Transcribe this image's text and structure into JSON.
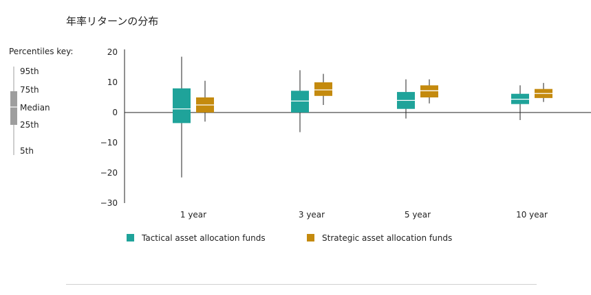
{
  "title": "年率リターンの分布",
  "key": {
    "heading": "Percentiles key:",
    "labels": [
      "95th",
      "75th",
      "Median",
      "25th",
      "5th"
    ],
    "color": "#9e9e9e"
  },
  "colors": {
    "tactical": "#1fa39a",
    "strategic": "#c48a0e",
    "median_line": "#ffffff",
    "axis": "#222222"
  },
  "chart_data": {
    "type": "box",
    "title": "年率リターンの分布",
    "categories": [
      "1 year",
      "3 year",
      "5 year",
      "10 year"
    ],
    "ylim": [
      -30,
      20
    ],
    "yticks": [
      "20",
      "10",
      "0",
      "−10",
      "−20",
      "−30"
    ],
    "ytick_values": [
      20,
      10,
      0,
      -10,
      -20,
      -30
    ],
    "xlabel": "",
    "ylabel": "",
    "legend_position": "bottom",
    "series": [
      {
        "name": "Tactical asset allocation funds",
        "color": "#1fa39a",
        "boxes": [
          {
            "p5": -21.5,
            "p25": -3.5,
            "median": 1.2,
            "p75": 8.0,
            "p95": 18.5
          },
          {
            "p5": -6.5,
            "p25": 0.0,
            "median": 3.8,
            "p75": 7.2,
            "p95": 14.0
          },
          {
            "p5": -2.0,
            "p25": 1.2,
            "median": 4.0,
            "p75": 6.8,
            "p95": 11.0
          },
          {
            "p5": -2.5,
            "p25": 2.8,
            "median": 4.4,
            "p75": 6.2,
            "p95": 9.0
          }
        ]
      },
      {
        "name": "Strategic asset allocation funds",
        "color": "#c48a0e",
        "boxes": [
          {
            "p5": -3.0,
            "p25": 0.0,
            "median": 2.5,
            "p75": 5.0,
            "p95": 10.5
          },
          {
            "p5": 2.5,
            "p25": 5.5,
            "median": 7.5,
            "p75": 10.0,
            "p95": 12.8
          },
          {
            "p5": 3.0,
            "p25": 5.0,
            "median": 7.2,
            "p75": 9.0,
            "p95": 11.0
          },
          {
            "p5": 3.5,
            "p25": 4.8,
            "median": 6.3,
            "p75": 7.8,
            "p95": 9.8
          }
        ]
      }
    ]
  }
}
